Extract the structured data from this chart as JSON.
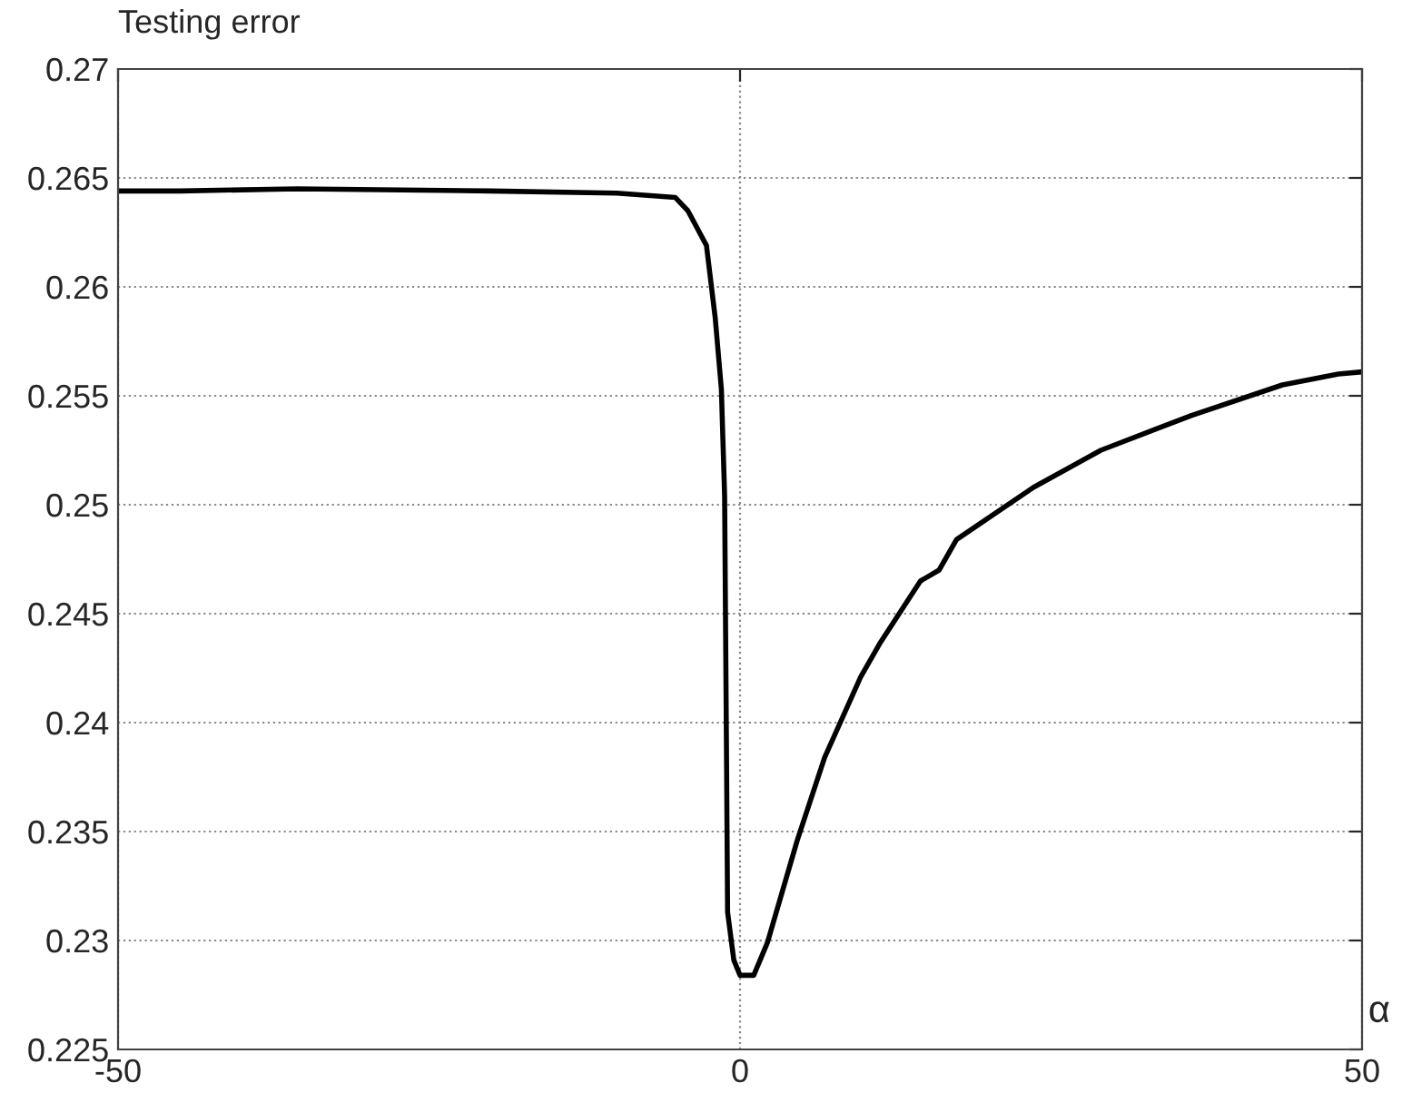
{
  "chart_data": {
    "type": "line",
    "xlabel": "α",
    "ylabel": "Testing error",
    "x": [
      -50,
      -45,
      -35.6,
      -20,
      -9.9,
      -5.2,
      -4.2,
      -2.7,
      -2.0,
      -1.5,
      -1.24,
      -1.1,
      -1.0,
      -0.5,
      0,
      1.1,
      2.2,
      4.6,
      6.8,
      9.7,
      11.2,
      14.5,
      16.0,
      17.4,
      23.6,
      29.0,
      36.3,
      43.6,
      48.1,
      50
    ],
    "series": [
      {
        "color": "#000000",
        "values": [
          0.2644,
          0.2644,
          0.2645,
          0.2644,
          0.2643,
          0.2641,
          0.2635,
          0.2619,
          0.2586,
          0.2553,
          0.2504,
          0.2395,
          0.2313,
          0.2291,
          0.2284,
          0.2284,
          0.2299,
          0.2346,
          0.2384,
          0.2421,
          0.2436,
          0.2465,
          0.247,
          0.2484,
          0.2508,
          0.2525,
          0.2541,
          0.2555,
          0.256,
          0.2561
        ]
      }
    ],
    "xlim": [
      -50,
      50
    ],
    "xticks": [
      -50,
      0,
      50
    ],
    "ylim": [
      0.225,
      0.27
    ],
    "yticks": [
      0.225,
      0.23,
      0.235,
      0.24,
      0.245,
      0.25,
      0.255,
      0.26,
      0.265,
      0.27
    ],
    "grid": true,
    "marker": "none",
    "line_style": "solid"
  }
}
